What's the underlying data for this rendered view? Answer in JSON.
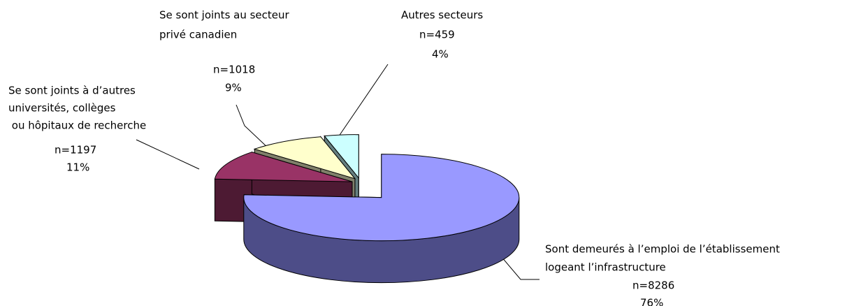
{
  "chart_data": {
    "type": "pie",
    "categories": [
      [
        "Sont demeurés à l’emploi de l’établissement",
        "logeant l’infrastructure"
      ],
      [
        "Se sont joints à d’autres",
        "universités, collèges",
        " ou hôpitaux de recherche"
      ],
      [
        "Se sont joints au secteur",
        "privé canadien"
      ],
      [
        "Autres secteurs"
      ]
    ],
    "values": [
      76,
      11,
      9,
      4
    ],
    "value_labels": [
      "76%",
      "11%",
      "9%",
      "4%"
    ],
    "counts": [
      8286,
      1197,
      1018,
      459
    ],
    "count_labels": [
      "n=8286",
      "n=1197",
      "n=1018",
      "n=459"
    ],
    "colors": [
      "#9999ff",
      "#993366",
      "#ffffcc",
      "#ccffff"
    ],
    "side_colors": [
      "#4d4d88",
      "#4d1a33",
      "#80806a",
      "#668080"
    ]
  }
}
